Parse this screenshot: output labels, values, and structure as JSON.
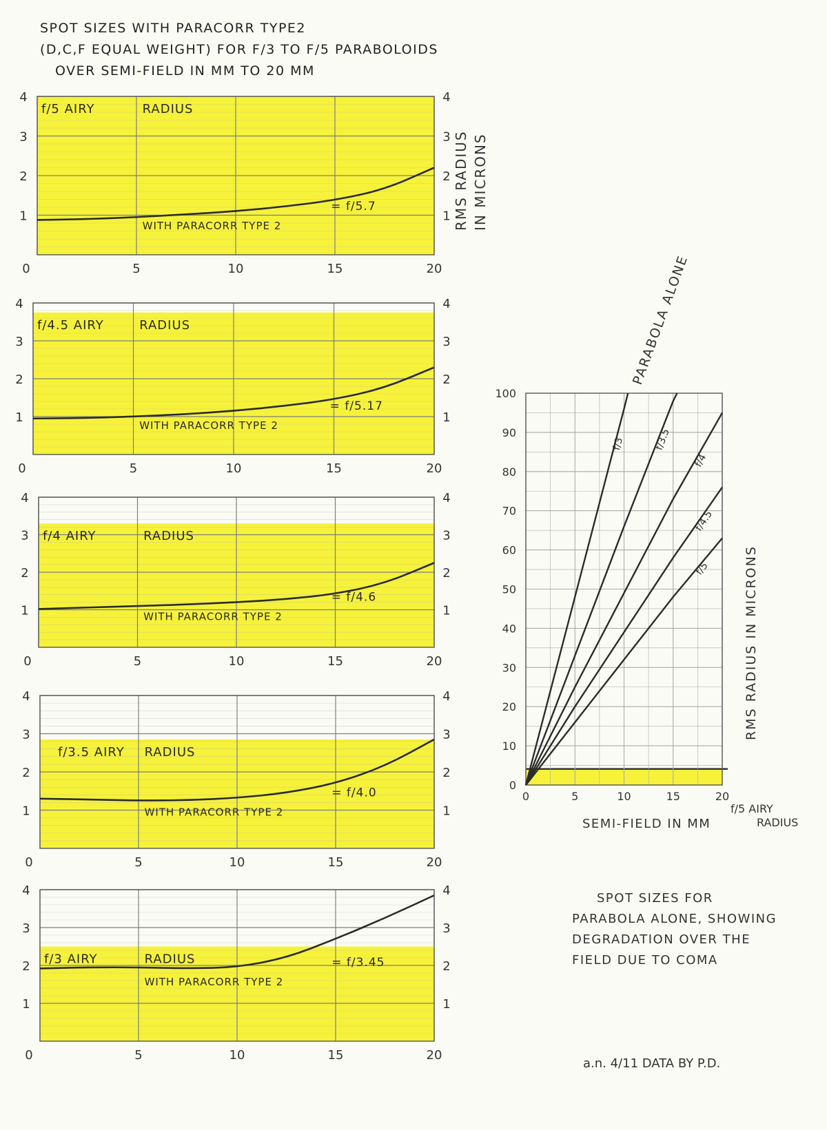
{
  "title_lines": [
    "SPOT SIZES WITH PARACORR TYPE2",
    "(D,C,F EQUAL WEIGHT) FOR f/3 TO f/5 PARABOLOIDS",
    "OVER SEMI-FIELD IN MM TO 20 MM"
  ],
  "right_axis_label": [
    "RMS RADIUS",
    "IN MICRONS"
  ],
  "parabola_chart": {
    "ylabel": "RMS RADIUS IN MICRONS",
    "xlabel": "SEMI-FIELD IN MM",
    "airy_label": [
      "f/5 AIRY",
      "RADIUS"
    ],
    "curve_title": "PARABOLA ALONE",
    "caption_lines": [
      "SPOT SIZES FOR",
      "PARABOLA ALONE, SHOWING",
      "DEGRADATION OVER THE",
      "FIELD DUE TO COMA"
    ]
  },
  "signature": "a.n. 4/11   DATA BY P.D.",
  "colors": {
    "highlight": "#f6f23a",
    "ink": "#2b2b2b",
    "grid": "#9a9a9a",
    "paper": "#fbfbf6"
  },
  "chart_data": [
    {
      "type": "line",
      "x": [
        0,
        2.5,
        5,
        7.5,
        10,
        12.5,
        15,
        17.5,
        20
      ],
      "xlim": [
        0,
        20
      ],
      "ylim": [
        0,
        4
      ],
      "xticks": [
        0,
        5,
        10,
        15,
        20
      ],
      "yticks": [
        1,
        2,
        3,
        4
      ],
      "airy_radius": 4.1,
      "airy_label": [
        "f/5 AIRY",
        "RADIUS"
      ],
      "series": [
        {
          "name": "WITH PARACORR TYPE 2",
          "values": [
            0.88,
            0.9,
            0.95,
            1.02,
            1.1,
            1.22,
            1.38,
            1.65,
            2.2
          ]
        }
      ],
      "annotation": "= f/5.7",
      "grid": true
    },
    {
      "type": "line",
      "x": [
        0,
        2.5,
        5,
        7.5,
        10,
        12.5,
        15,
        17.5,
        20
      ],
      "xlim": [
        0,
        20
      ],
      "ylim": [
        0,
        4
      ],
      "xticks": [
        0,
        5,
        10,
        15,
        20
      ],
      "yticks": [
        1,
        2,
        3,
        4
      ],
      "airy_radius": 3.75,
      "airy_label": [
        "f/4.5 AIRY",
        "RADIUS"
      ],
      "series": [
        {
          "name": "WITH PARACORR TYPE 2",
          "values": [
            0.95,
            0.96,
            1.0,
            1.06,
            1.15,
            1.28,
            1.45,
            1.75,
            2.3
          ]
        }
      ],
      "annotation": "= f/5.17",
      "grid": true
    },
    {
      "type": "line",
      "x": [
        0,
        2.5,
        5,
        7.5,
        10,
        12.5,
        15,
        17.5,
        20
      ],
      "xlim": [
        0,
        20
      ],
      "ylim": [
        0,
        4
      ],
      "xticks": [
        0,
        5,
        10,
        15,
        20
      ],
      "yticks": [
        1,
        2,
        3,
        4
      ],
      "airy_radius": 3.3,
      "airy_label": [
        "f/4 AIRY",
        "RADIUS"
      ],
      "series": [
        {
          "name": "WITH PARACORR TYPE 2",
          "values": [
            1.02,
            1.06,
            1.1,
            1.14,
            1.2,
            1.28,
            1.42,
            1.7,
            2.25
          ]
        }
      ],
      "annotation": "= f/4.6",
      "grid": true
    },
    {
      "type": "line",
      "x": [
        0,
        2.5,
        5,
        7.5,
        10,
        12.5,
        15,
        17.5,
        20
      ],
      "xlim": [
        0,
        20
      ],
      "ylim": [
        0,
        4
      ],
      "xticks": [
        0,
        5,
        10,
        15,
        20
      ],
      "yticks": [
        1,
        2,
        3,
        4
      ],
      "airy_radius": 2.85,
      "airy_label": [
        "f/3.5 AIRY",
        "RADIUS"
      ],
      "series": [
        {
          "name": "WITH PARACORR TYPE 2",
          "values": [
            1.3,
            1.28,
            1.25,
            1.26,
            1.32,
            1.45,
            1.7,
            2.15,
            2.85
          ]
        }
      ],
      "annotation": "= f/4.0",
      "grid": true
    },
    {
      "type": "line",
      "x": [
        0,
        2.5,
        5,
        7.5,
        10,
        12.5,
        15,
        17.5,
        20
      ],
      "xlim": [
        0,
        20
      ],
      "ylim": [
        0,
        4
      ],
      "xticks": [
        0,
        5,
        10,
        15,
        20
      ],
      "yticks": [
        1,
        2,
        3,
        4
      ],
      "airy_radius": 2.5,
      "airy_label": [
        "f/3 AIRY",
        "RADIUS"
      ],
      "series": [
        {
          "name": "WITH PARACORR TYPE 2",
          "values": [
            1.92,
            1.95,
            1.95,
            1.92,
            1.95,
            2.2,
            2.7,
            3.25,
            3.85
          ]
        }
      ],
      "annotation": "= f/3.45",
      "grid": true
    },
    {
      "type": "line",
      "x": [
        0,
        5,
        10,
        15,
        20
      ],
      "xlim": [
        0,
        20
      ],
      "ylim": [
        0,
        100
      ],
      "xticks": [
        0,
        5,
        10,
        15,
        20
      ],
      "yticks": [
        0,
        10,
        20,
        30,
        40,
        50,
        60,
        70,
        80,
        90,
        100
      ],
      "xlabel": "SEMI-FIELD IN MM",
      "ylabel": "RMS RADIUS IN MICRONS",
      "airy_radius": 4.1,
      "series": [
        {
          "name": "f/3",
          "x": [
            0,
            5,
            10,
            10.4
          ],
          "values": [
            0,
            48,
            96,
            100
          ]
        },
        {
          "name": "f/3.5",
          "x": [
            0,
            5,
            10,
            15,
            15.4
          ],
          "values": [
            0,
            33,
            66,
            98,
            100
          ]
        },
        {
          "name": "f/4",
          "x": [
            0,
            5,
            10,
            15,
            20
          ],
          "values": [
            0,
            25,
            49,
            73,
            95
          ]
        },
        {
          "name": "f/4.5",
          "x": [
            0,
            5,
            10,
            15,
            20
          ],
          "values": [
            0,
            20,
            39,
            58,
            76
          ]
        },
        {
          "name": "f/5",
          "x": [
            0,
            5,
            10,
            15,
            20
          ],
          "values": [
            0,
            16,
            32,
            48,
            63
          ]
        }
      ],
      "grid": true
    }
  ]
}
